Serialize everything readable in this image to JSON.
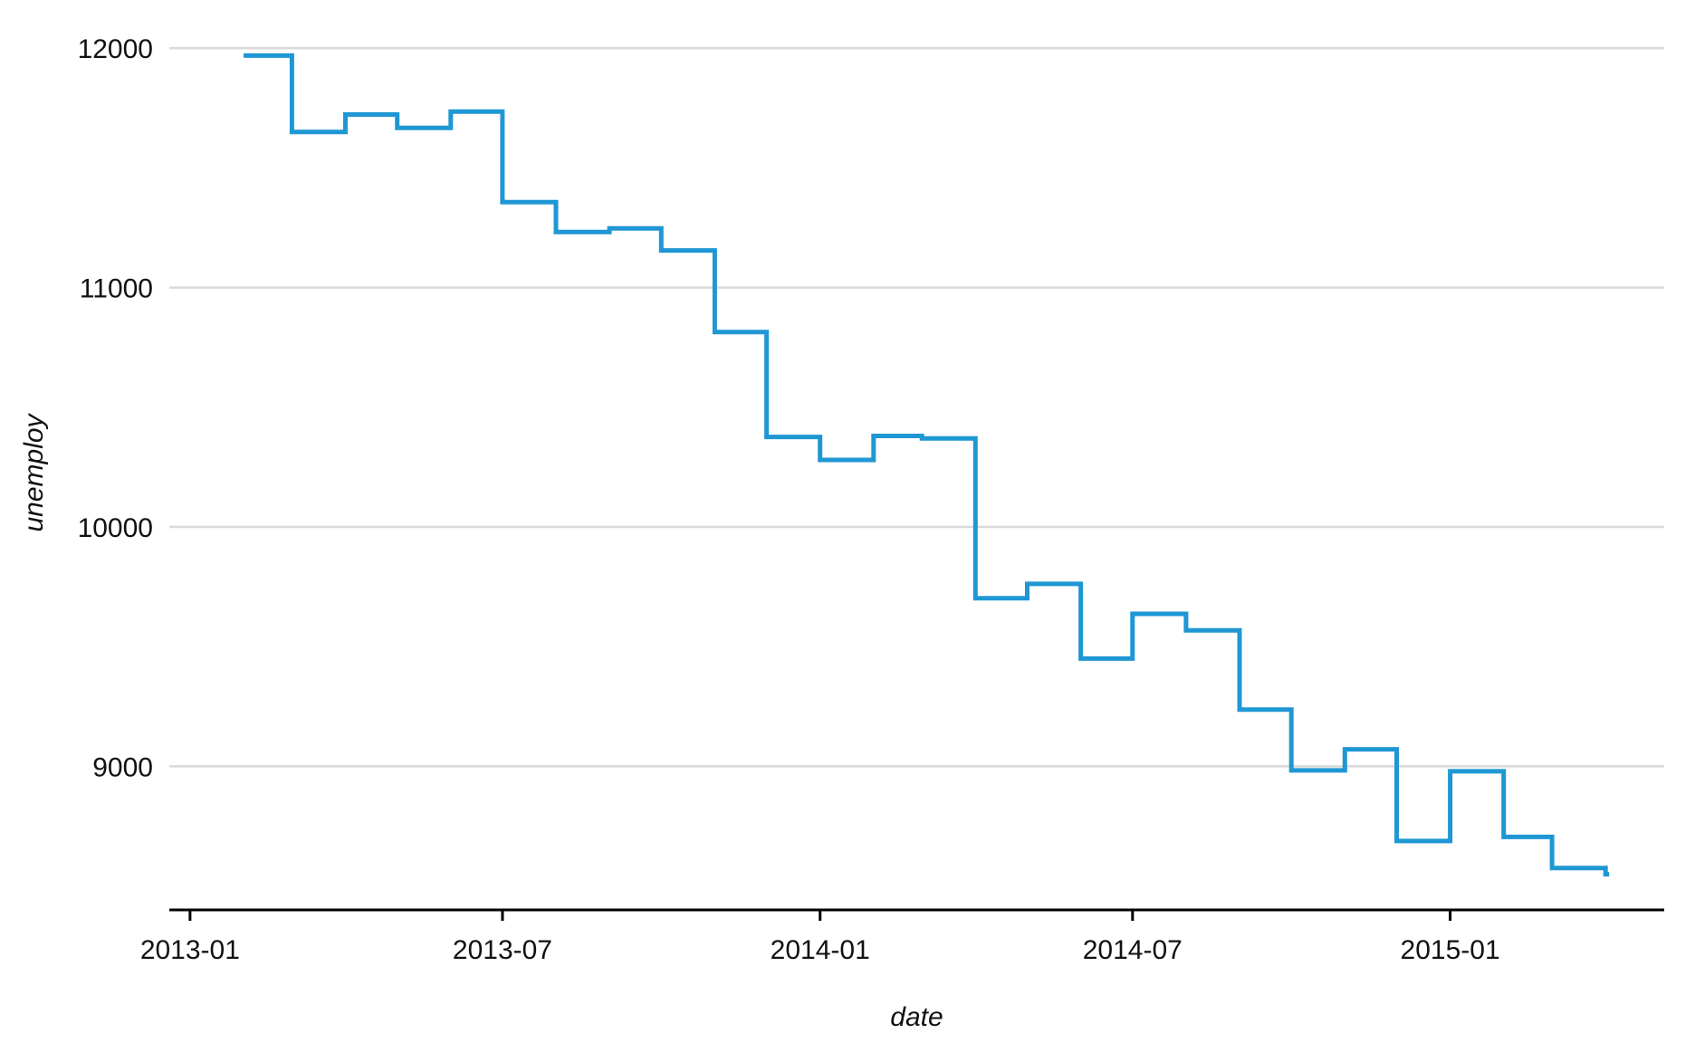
{
  "chart_data": {
    "type": "line",
    "step": true,
    "title": "",
    "xlabel": "date",
    "ylabel": "unemploy",
    "xlim": [
      "2012-12-20",
      "2015-05-05"
    ],
    "ylim": [
      8400,
      12050
    ],
    "grid": "horizontal",
    "legend": "none",
    "x_ticks": [
      "2013-01",
      "2013-07",
      "2014-01",
      "2014-07",
      "2015-01"
    ],
    "y_ticks": [
      9000,
      10000,
      11000,
      12000
    ],
    "colors": {
      "series": "#1f97d4",
      "grid": "#d9d9d9",
      "axis": "#000000"
    },
    "series": [
      {
        "x": [
          "2013-02-01",
          "2013-03-01",
          "2013-04-01",
          "2013-05-01",
          "2013-06-01",
          "2013-07-01",
          "2013-08-01",
          "2013-09-01",
          "2013-10-01",
          "2013-11-01",
          "2013-12-01",
          "2014-01-01",
          "2014-02-01",
          "2014-03-01",
          "2014-04-01",
          "2014-05-01",
          "2014-06-01",
          "2014-07-01",
          "2014-08-01",
          "2014-09-01",
          "2014-10-01",
          "2014-11-01",
          "2014-12-01",
          "2015-01-01",
          "2015-02-01",
          "2015-03-01",
          "2015-04-01"
        ],
        "values": [
          11969,
          11650,
          11723,
          11667,
          11735,
          11357,
          11232,
          11247,
          11155,
          10814,
          10376,
          10280,
          10380,
          10370,
          9702,
          9762,
          9450,
          9637,
          9568,
          9237,
          8983,
          9071,
          8688,
          8979,
          8705,
          8575,
          8549
        ]
      }
    ]
  }
}
